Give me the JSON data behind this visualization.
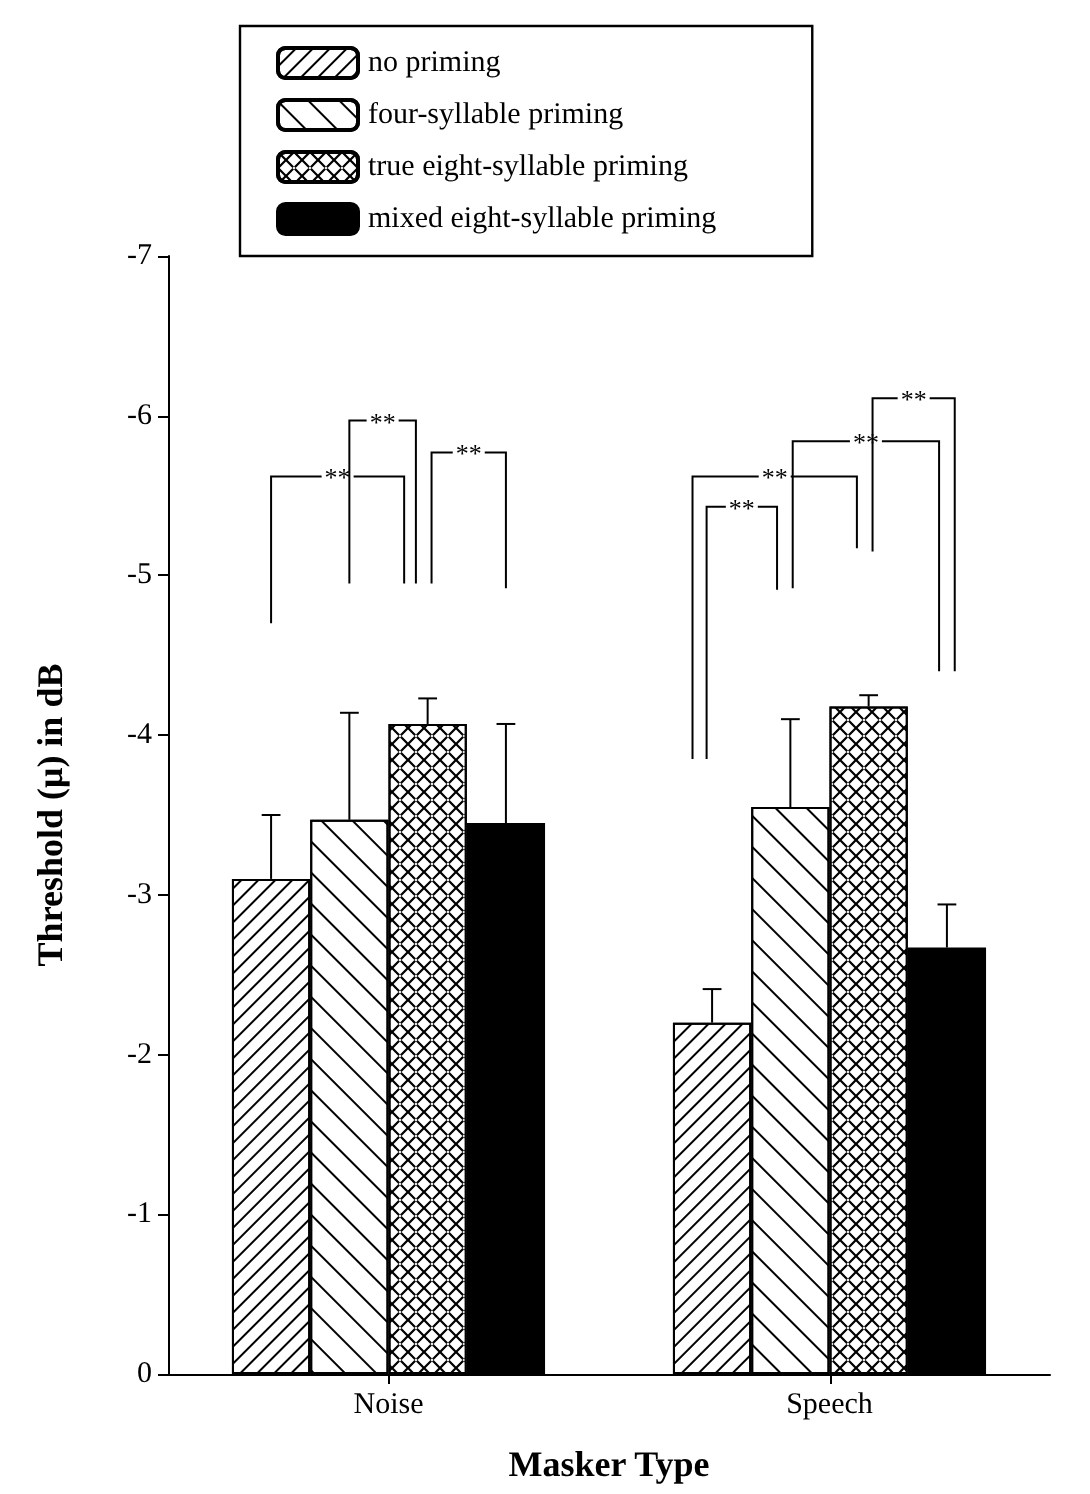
{
  "chart_data": {
    "type": "bar",
    "xlabel": "Masker Type",
    "ylabel": "Threshold (μ) in dB",
    "categories": [
      "Noise",
      "Speech"
    ],
    "series": [
      {
        "name": "no priming",
        "color": "#ffffff",
        "values": [
          -3.1,
          -2.2
        ],
        "errors": [
          [
            -3.5,
            -3.1
          ],
          [
            -2.41,
            -2.2
          ]
        ]
      },
      {
        "name": "four-syllable priming",
        "color": "#ffffff",
        "values": [
          -3.47,
          -3.55
        ],
        "errors": [
          [
            -4.14,
            -3.47
          ],
          [
            -4.1,
            -3.55
          ]
        ]
      },
      {
        "name": "true eight-syllable priming",
        "color": "#ffffff",
        "values": [
          -4.07,
          -4.18
        ],
        "errors": [
          [
            -4.23,
            -4.07
          ],
          [
            -4.25,
            -4.18
          ]
        ]
      },
      {
        "name": "mixed eight-syllable priming",
        "color": "#000000",
        "values": [
          -3.45,
          -2.67
        ],
        "errors": [
          [
            -4.07,
            -3.45
          ],
          [
            -2.94,
            -2.67
          ]
        ]
      }
    ],
    "ylim": [
      0,
      -7
    ],
    "yticks": [
      0,
      -1,
      -2,
      -3,
      -4,
      -5,
      -6,
      -7
    ],
    "annotations": [
      "**",
      "**",
      "**",
      "**",
      "**",
      "**",
      "**"
    ],
    "grid": false,
    "legend": "top"
  }
}
